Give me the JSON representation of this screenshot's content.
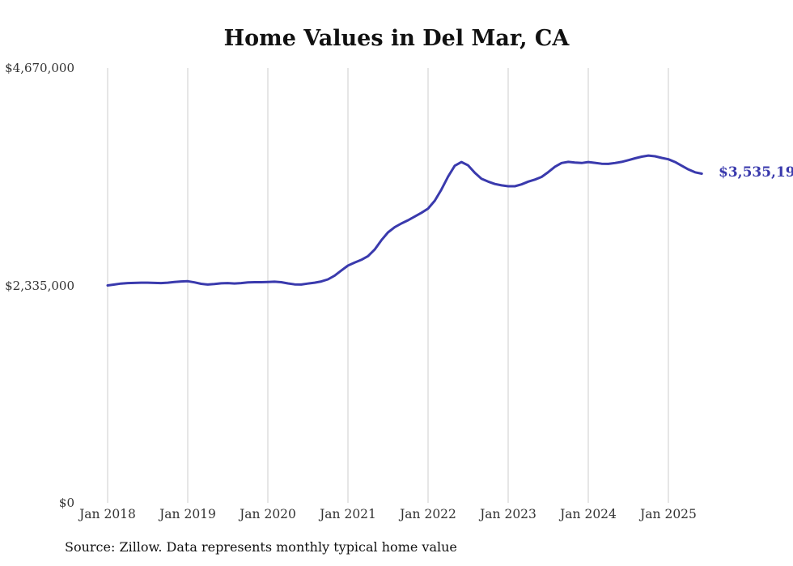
{
  "chart": {
    "title": "Home Values in Del Mar, CA",
    "source": "Source: Zillow. Data represents monthly typical home value",
    "end_label": "$3,535,197",
    "line_color": "#3a3aad",
    "grid_color": "#cccccc"
  },
  "chart_data": {
    "type": "line",
    "title": "Home Values in Del Mar, CA",
    "xlabel": "",
    "ylabel": "",
    "ylim": [
      0,
      4670000
    ],
    "grid": "vertical-only",
    "legend": "none",
    "x_start": "2018-01",
    "x_end": "2025-06",
    "x_frequency": "monthly",
    "x_tick_labels": [
      "Jan 2018",
      "Jan 2019",
      "Jan 2020",
      "Jan 2021",
      "Jan 2022",
      "Jan 2023",
      "Jan 2024",
      "Jan 2025"
    ],
    "y_ticks": [
      {
        "label": "$0",
        "value": 0
      },
      {
        "label": "$2,335,000",
        "value": 2335000
      },
      {
        "label": "$4,670,000",
        "value": 4670000
      }
    ],
    "latest_value": 3535197,
    "latest_value_label": "$3,535,197",
    "series": [
      {
        "name": "Typical home value",
        "values": [
          2335000,
          2345000,
          2355000,
          2360000,
          2362000,
          2365000,
          2365000,
          2362000,
          2360000,
          2365000,
          2372000,
          2378000,
          2380000,
          2368000,
          2352000,
          2345000,
          2350000,
          2358000,
          2360000,
          2356000,
          2360000,
          2368000,
          2370000,
          2370000,
          2372000,
          2375000,
          2370000,
          2357000,
          2346000,
          2345000,
          2355000,
          2365000,
          2378000,
          2400000,
          2440000,
          2495000,
          2548000,
          2580000,
          2610000,
          2650000,
          2720000,
          2820000,
          2905000,
          2960000,
          3000000,
          3035000,
          3075000,
          3115000,
          3160000,
          3245000,
          3365000,
          3505000,
          3620000,
          3660000,
          3625000,
          3545000,
          3480000,
          3450000,
          3425000,
          3410000,
          3400000,
          3400000,
          3420000,
          3450000,
          3472000,
          3500000,
          3552000,
          3610000,
          3650000,
          3662000,
          3655000,
          3650000,
          3660000,
          3652000,
          3642000,
          3640000,
          3650000,
          3662000,
          3680000,
          3700000,
          3718000,
          3730000,
          3722000,
          3705000,
          3690000,
          3660000,
          3620000,
          3580000,
          3550000,
          3535197
        ]
      }
    ]
  }
}
